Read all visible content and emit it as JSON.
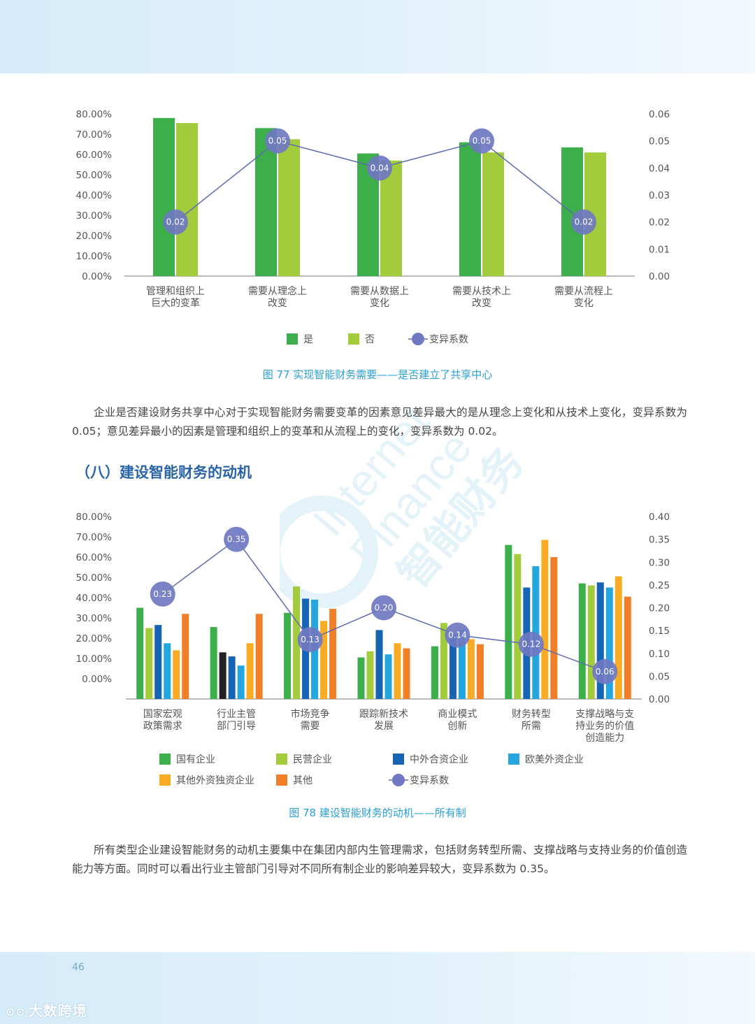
{
  "page_number": "46",
  "logo_text": "大数跨境",
  "watermark": {
    "line1": "Internet",
    "line2": "Finance",
    "line3": "智能财务"
  },
  "colors": {
    "green": "#3daf4a",
    "lightgreen": "#a3cc3c",
    "blue": "#1565b4",
    "cyan": "#24a7de",
    "orange_light": "#f9ab24",
    "orange": "#f17f27",
    "black": "#222222",
    "cv_line": "#5c6bb0",
    "cv_point": "#6f78c0",
    "axis": "#777777",
    "caption": "#2a9fd6",
    "section_title": "#2a64a8"
  },
  "chart_data": [
    {
      "type": "bar",
      "categories": [
        "管理和组织上\n巨大的变革",
        "需要从理念上\n改变",
        "需要从数据上\n变化",
        "需要从技术上\n改变",
        "需要从流程上\n变化"
      ],
      "series": [
        {
          "name": "是",
          "values": [
            78.0,
            73.0,
            60.5,
            66.0,
            63.5
          ],
          "color": "#3daf4a"
        },
        {
          "name": "否",
          "values": [
            75.5,
            67.5,
            57.0,
            61.0,
            61.0
          ],
          "color": "#a3cc3c"
        }
      ],
      "line_series": {
        "name": "变异系数",
        "values": [
          0.02,
          0.05,
          0.04,
          0.05,
          0.02
        ],
        "labels": [
          "0.02",
          "0.05",
          "0.04",
          "0.05",
          "0.02"
        ]
      },
      "y_left": {
        "range": [
          0,
          80
        ],
        "ticks": [
          "0.00%",
          "10.00%",
          "20.00%",
          "30.00%",
          "40.00%",
          "50.00%",
          "60.00%",
          "70.00%",
          "80.00%"
        ]
      },
      "y_right": {
        "range": [
          0,
          0.06
        ],
        "ticks": [
          "0.00",
          "0.01",
          "0.02",
          "0.03",
          "0.04",
          "0.05",
          "0.06"
        ]
      },
      "legend": [
        "是",
        "否",
        "变异系数"
      ],
      "legend_position": "bottom",
      "grid": false
    },
    {
      "type": "bar",
      "categories": [
        "国家宏观\n政策需求",
        "行业主管\n部门引导",
        "市场竞争\n需要",
        "跟踪新技术\n发展",
        "商业模式\n创新",
        "财务转型\n所需",
        "支撑战略与支\n持业务的价值\n创造能力"
      ],
      "series": [
        {
          "name": "国有企业",
          "values": [
            35,
            25.5,
            32.5,
            10.5,
            16,
            66,
            47
          ],
          "color": "#3daf4a"
        },
        {
          "name": "民营企业",
          "values": [
            25,
            13,
            45.5,
            13.5,
            27.5,
            61.5,
            46
          ],
          "color": "#a3cc3c"
        },
        {
          "name": "中外合资企业",
          "values": [
            26.5,
            11,
            39.5,
            24,
            21.5,
            45,
            47.5
          ],
          "color": "#1565b4"
        },
        {
          "name": "欧美外资企业",
          "values": [
            17.5,
            6.5,
            39,
            12,
            24,
            55.5,
            45
          ],
          "color": "#24a7de"
        },
        {
          "name": "其他外资独资企业",
          "values": [
            14,
            17.5,
            28.5,
            17.5,
            19.5,
            68.5,
            50.5
          ],
          "color": "#f9ab24"
        },
        {
          "name": "其他",
          "values": [
            32,
            32,
            34.5,
            15,
            17,
            60,
            40.5
          ],
          "color": "#f17f27"
        }
      ],
      "line_series": {
        "name": "变异系数",
        "values": [
          0.23,
          0.35,
          0.13,
          0.2,
          0.14,
          0.12,
          0.06
        ],
        "labels": [
          "0.23",
          "0.35",
          "0.13",
          "0.20",
          "0.14",
          "0.12",
          "0.06"
        ]
      },
      "y_left": {
        "range": [
          -10,
          80
        ],
        "ticks": [
          "0.00%",
          "10.00%",
          "20.00%",
          "30.00%",
          "40.00%",
          "50.00%",
          "60.00%",
          "70.00%",
          "80.00%"
        ]
      },
      "y_right": {
        "range": [
          0,
          0.4
        ],
        "ticks": [
          "0.00",
          "0.05",
          "0.10",
          "0.15",
          "0.20",
          "0.25",
          "0.30",
          "0.35",
          "0.40"
        ]
      },
      "legend": [
        "国有企业",
        "民营企业",
        "中外合资企业",
        "欧美外资企业",
        "其他外资独资企业",
        "其他",
        "变异系数"
      ],
      "legend_position": "bottom",
      "grid": false
    }
  ],
  "captions": {
    "fig77": "图 77  实现智能财务需要——是否建立了共享中心",
    "fig78": "图 78  建设智能财务的动机——所有制"
  },
  "paragraphs": {
    "p1": "企业是否建设财务共享中心对于实现智能财务需要变革的因素意见差异最大的是从理念上变化和从技术上变化，变异系数为 0.05；意见差异最小的因素是管理和组织上的变革和从流程上的变化，变异系数为 0.02。",
    "p2": "所有类型企业建设智能财务的动机主要集中在集团内部内生管理需求，包括财务转型所需、支撑战略与支持业务的价值创造能力等方面。同时可以看出行业主管部门引导对不同所有制企业的影响差异较大，变异系数为 0.35。"
  },
  "section_title": "（八）建设智能财务的动机"
}
